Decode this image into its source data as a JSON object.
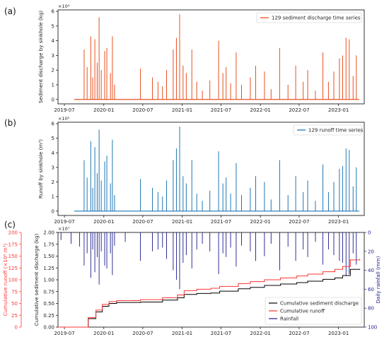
{
  "chart_data": [
    {
      "panel": "(a)",
      "type": "bar",
      "multiplier": "×10⁴",
      "ylabel": "Sediment discharge by sinkhole (kg)",
      "xlabel": "",
      "ylim": [
        -0.3,
        6.1
      ],
      "yticks": [
        "0",
        "1",
        "2",
        "3",
        "4",
        "5",
        "6"
      ],
      "xticks": [
        "2019-07",
        "2020-01",
        "2020-07",
        "2021-01",
        "2021-07",
        "2022-01",
        "2022-07",
        "2023-01"
      ],
      "x_range": [
        "2019-06-01",
        "2023-05-01"
      ],
      "color": "#e8501e",
      "legend": "129 sediment discharge time series",
      "legend_position": "top-right",
      "series": [
        {
          "name": "129 sediment discharge time series",
          "x": [
            "2019-10-01",
            "2019-10-15",
            "2019-11-01",
            "2019-11-10",
            "2019-11-20",
            "2019-12-01",
            "2019-12-10",
            "2019-12-20",
            "2020-01-05",
            "2020-01-15",
            "2020-02-01",
            "2020-02-10",
            "2020-02-20",
            "2020-06-20",
            "2020-08-15",
            "2020-09-10",
            "2020-10-01",
            "2020-10-20",
            "2020-11-20",
            "2020-12-05",
            "2020-12-20",
            "2021-01-05",
            "2021-01-20",
            "2021-02-15",
            "2021-03-10",
            "2021-04-05",
            "2021-05-10",
            "2021-06-20",
            "2021-07-10",
            "2021-07-25",
            "2021-08-15",
            "2021-09-10",
            "2021-10-05",
            "2021-11-15",
            "2021-12-10",
            "2022-01-20",
            "2022-02-20",
            "2022-04-01",
            "2022-05-10",
            "2022-06-15",
            "2022-07-20",
            "2022-08-10",
            "2022-09-15",
            "2022-10-20",
            "2022-11-15",
            "2022-12-10",
            "2023-01-05",
            "2023-01-20",
            "2023-02-05",
            "2023-02-20",
            "2023-03-10",
            "2023-03-25"
          ],
          "values": [
            3.4,
            2.2,
            4.3,
            1.5,
            4.1,
            2.5,
            5.6,
            2.0,
            3.3,
            3.5,
            1.8,
            4.3,
            1.0,
            2.1,
            1.5,
            1.2,
            0.9,
            2.0,
            3.4,
            4.2,
            5.8,
            2.3,
            1.8,
            3.4,
            1.2,
            0.6,
            1.3,
            4.0,
            1.8,
            2.2,
            1.1,
            3.2,
            1.0,
            1.5,
            2.3,
            1.9,
            0.7,
            3.5,
            1.0,
            2.3,
            1.2,
            2.0,
            0.6,
            3.2,
            1.2,
            1.9,
            2.8,
            3.0,
            4.2,
            4.1,
            1.6,
            3.0
          ]
        }
      ]
    },
    {
      "panel": "(b)",
      "type": "bar",
      "multiplier": "×10⁵",
      "ylabel": "Runoff by sinkhole (m³)",
      "xlabel": "",
      "ylim": [
        -0.3,
        6.1
      ],
      "yticks": [
        "0",
        "1",
        "2",
        "3",
        "4",
        "5",
        "6"
      ],
      "xticks": [
        "2019-07",
        "2020-01",
        "2020-07",
        "2021-01",
        "2021-07",
        "2022-01",
        "2022-07",
        "2023-01"
      ],
      "x_range": [
        "2019-06-01",
        "2023-05-01"
      ],
      "color": "#1f77b4",
      "legend": "129 runoff time series",
      "legend_position": "top-right",
      "series": [
        {
          "name": "129 runoff time series",
          "x": [
            "2019-10-01",
            "2019-10-15",
            "2019-11-01",
            "2019-11-10",
            "2019-11-20",
            "2019-12-01",
            "2019-12-10",
            "2019-12-20",
            "2020-01-05",
            "2020-01-15",
            "2020-02-01",
            "2020-02-10",
            "2020-02-20",
            "2020-06-20",
            "2020-08-15",
            "2020-09-10",
            "2020-10-01",
            "2020-10-20",
            "2020-11-20",
            "2020-12-05",
            "2020-12-20",
            "2021-01-05",
            "2021-01-20",
            "2021-02-15",
            "2021-03-10",
            "2021-04-05",
            "2021-05-10",
            "2021-06-20",
            "2021-07-10",
            "2021-07-25",
            "2021-08-15",
            "2021-09-10",
            "2021-10-05",
            "2021-11-15",
            "2021-12-10",
            "2022-01-20",
            "2022-02-20",
            "2022-04-01",
            "2022-05-10",
            "2022-06-15",
            "2022-07-20",
            "2022-08-10",
            "2022-09-15",
            "2022-10-20",
            "2022-11-15",
            "2022-12-10",
            "2023-01-05",
            "2023-01-20",
            "2023-02-05",
            "2023-02-20",
            "2023-03-10",
            "2023-03-25"
          ],
          "values": [
            3.5,
            2.3,
            4.8,
            1.6,
            4.4,
            2.6,
            5.6,
            2.1,
            3.4,
            3.8,
            1.9,
            4.9,
            1.1,
            2.2,
            1.6,
            1.3,
            1.0,
            2.1,
            3.5,
            4.3,
            5.8,
            2.4,
            1.9,
            3.5,
            1.2,
            0.7,
            1.4,
            4.1,
            1.9,
            2.3,
            1.2,
            3.3,
            1.1,
            1.6,
            2.4,
            2.0,
            0.8,
            3.5,
            1.1,
            2.4,
            1.3,
            2.1,
            0.7,
            3.2,
            1.3,
            2.0,
            2.9,
            3.1,
            4.3,
            4.2,
            1.7,
            3.0
          ]
        }
      ]
    },
    {
      "panel": "(c)",
      "type": "line",
      "multiplier": "×10⁷",
      "ylabel": "Cumulative sediment discharge (kg)",
      "ylabel_left_outer": "Cumulative runoff (×10⁶ m³)",
      "ylabel_right": "Daily rainfall (mm)",
      "ylim": [
        0,
        2.0
      ],
      "yticks": [
        "0.00",
        "0.25",
        "0.50",
        "0.75",
        "1.00",
        "1.25",
        "1.50",
        "1.75",
        "2.00"
      ],
      "ylim_outer": [
        0,
        200
      ],
      "yticks_outer": [
        "0",
        "25",
        "50",
        "75",
        "100",
        "125",
        "150",
        "175",
        "200"
      ],
      "ylim_right": [
        100,
        0
      ],
      "yticks_right": [
        "0",
        "20",
        "40",
        "60",
        "80",
        "100"
      ],
      "xticks": [
        "2019-07",
        "2020-01",
        "2020-07",
        "2021-01",
        "2021-07",
        "2022-01",
        "2022-07",
        "2023-01"
      ],
      "x_range": [
        "2019-06-01",
        "2023-05-01"
      ],
      "legend_position": "bottom-right",
      "series": [
        {
          "name": "Cumulative sediment discharge",
          "color": "#000000",
          "x": [
            "2019-06-01",
            "2019-09-20",
            "2019-10-20",
            "2019-11-25",
            "2019-12-25",
            "2020-01-25",
            "2020-03-01",
            "2020-06-20",
            "2020-10-01",
            "2020-12-10",
            "2021-01-10",
            "2021-03-10",
            "2021-05-15",
            "2021-06-25",
            "2021-09-20",
            "2021-11-15",
            "2022-01-20",
            "2022-04-05",
            "2022-06-20",
            "2022-08-10",
            "2022-10-20",
            "2022-12-15",
            "2023-01-20",
            "2023-02-25",
            "2023-04-10"
          ],
          "values": [
            0.0,
            0.0,
            0.18,
            0.32,
            0.44,
            0.5,
            0.52,
            0.53,
            0.57,
            0.62,
            0.69,
            0.71,
            0.72,
            0.76,
            0.81,
            0.84,
            0.88,
            0.91,
            0.94,
            0.97,
            1.01,
            1.04,
            1.09,
            1.22,
            1.23
          ]
        },
        {
          "name": "Cumulative runoff",
          "color": "#ff3333",
          "x": [
            "2019-06-01",
            "2019-09-20",
            "2019-10-20",
            "2019-11-25",
            "2019-12-25",
            "2020-01-25",
            "2020-03-01",
            "2020-06-20",
            "2020-10-01",
            "2020-12-10",
            "2021-01-10",
            "2021-03-10",
            "2021-05-15",
            "2021-06-25",
            "2021-09-20",
            "2021-11-15",
            "2022-01-20",
            "2022-04-05",
            "2022-06-20",
            "2022-08-10",
            "2022-10-20",
            "2022-12-15",
            "2023-01-20",
            "2023-02-25",
            "2023-04-10"
          ],
          "values": [
            0.0,
            0.0,
            0.2,
            0.36,
            0.48,
            0.54,
            0.56,
            0.58,
            0.62,
            0.68,
            0.77,
            0.8,
            0.82,
            0.86,
            0.92,
            0.96,
            1.0,
            1.04,
            1.08,
            1.12,
            1.17,
            1.22,
            1.28,
            1.42,
            1.44
          ]
        },
        {
          "name": "Rainfall",
          "color": "#1a1a8c",
          "type": "bar",
          "x": [
            "2019-06-15",
            "2019-08-01",
            "2019-09-10",
            "2019-10-01",
            "2019-10-15",
            "2019-11-01",
            "2019-11-10",
            "2019-11-20",
            "2019-12-01",
            "2019-12-10",
            "2019-12-20",
            "2020-01-05",
            "2020-01-15",
            "2020-02-01",
            "2020-02-10",
            "2020-02-20",
            "2020-04-10",
            "2020-06-20",
            "2020-08-15",
            "2020-09-10",
            "2020-10-01",
            "2020-10-20",
            "2020-11-20",
            "2020-12-05",
            "2020-12-20",
            "2021-01-05",
            "2021-01-20",
            "2021-02-15",
            "2021-03-10",
            "2021-04-05",
            "2021-05-10",
            "2021-06-20",
            "2021-07-10",
            "2021-07-25",
            "2021-08-15",
            "2021-09-10",
            "2021-10-05",
            "2021-11-15",
            "2021-12-10",
            "2022-01-20",
            "2022-02-20",
            "2022-04-01",
            "2022-05-10",
            "2022-06-15",
            "2022-07-20",
            "2022-08-10",
            "2022-09-15",
            "2022-10-20",
            "2022-11-15",
            "2022-12-10",
            "2023-01-05",
            "2023-01-20",
            "2023-02-05",
            "2023-02-20",
            "2023-03-10",
            "2023-03-25"
          ],
          "values": [
            8,
            12,
            15,
            35,
            22,
            48,
            18,
            42,
            26,
            55,
            20,
            35,
            38,
            22,
            45,
            14,
            10,
            30,
            20,
            18,
            16,
            28,
            40,
            50,
            60,
            32,
            24,
            38,
            18,
            12,
            20,
            44,
            22,
            26,
            16,
            36,
            14,
            20,
            30,
            25,
            12,
            40,
            15,
            30,
            18,
            26,
            10,
            34,
            18,
            24,
            30,
            32,
            46,
            44,
            22,
            34
          ]
        }
      ]
    }
  ]
}
